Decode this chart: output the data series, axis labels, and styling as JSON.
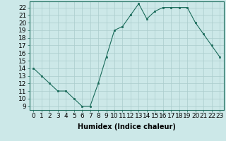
{
  "x": [
    0,
    1,
    2,
    3,
    4,
    5,
    6,
    7,
    8,
    9,
    10,
    11,
    12,
    13,
    14,
    15,
    16,
    17,
    18,
    19,
    20,
    21,
    22,
    23
  ],
  "y": [
    14,
    13,
    12,
    11,
    11,
    10,
    9,
    9,
    12,
    15.5,
    19,
    19.5,
    21,
    22.5,
    20.5,
    21.5,
    22,
    22,
    22,
    22,
    20,
    18.5,
    17,
    15.5
  ],
  "line_color": "#1a6b5a",
  "marker_color": "#1a6b5a",
  "bg_color": "#cce8e8",
  "grid_color": "#aacccc",
  "xlabel": "Humidex (Indice chaleur)",
  "xlim": [
    -0.5,
    23.5
  ],
  "ylim_min": 8.5,
  "ylim_max": 22.8,
  "yticks": [
    9,
    10,
    11,
    12,
    13,
    14,
    15,
    16,
    17,
    18,
    19,
    20,
    21,
    22
  ],
  "xticks": [
    0,
    1,
    2,
    3,
    4,
    5,
    6,
    7,
    8,
    9,
    10,
    11,
    12,
    13,
    14,
    15,
    16,
    17,
    18,
    19,
    20,
    21,
    22,
    23
  ],
  "xlabel_fontsize": 7,
  "tick_fontsize": 6.5
}
